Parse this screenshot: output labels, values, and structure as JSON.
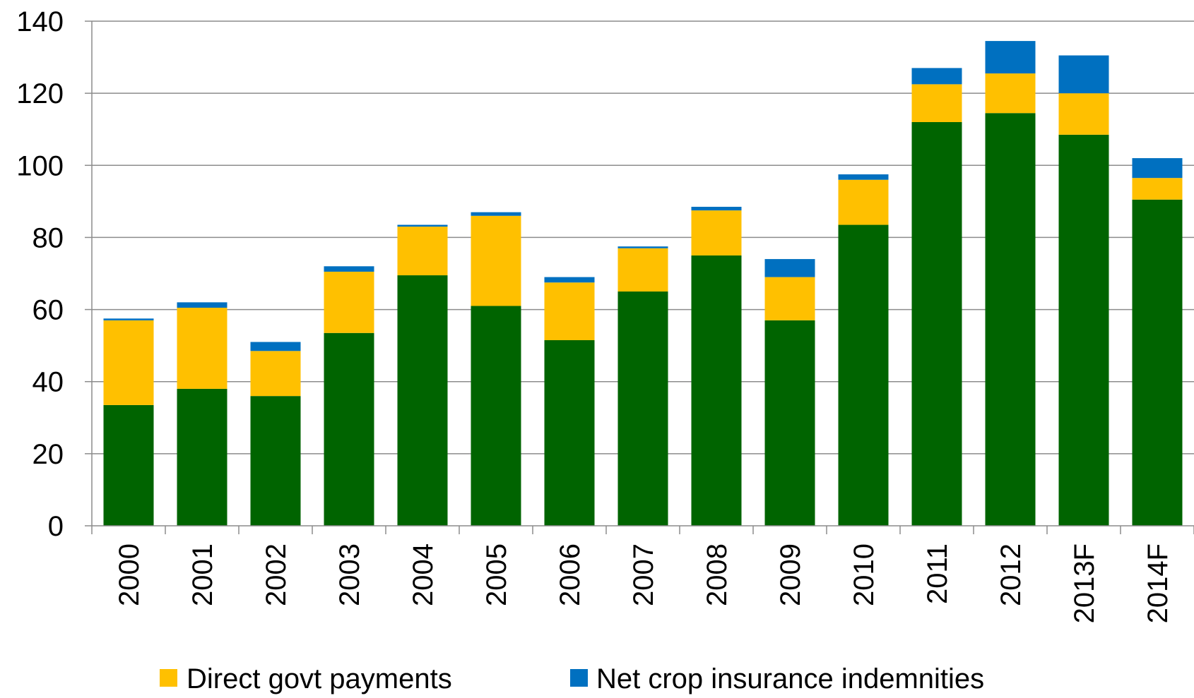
{
  "chart_data": {
    "type": "bar",
    "stacked": true,
    "title": "",
    "xlabel": "",
    "ylabel": "",
    "ylim": [
      0,
      140
    ],
    "yticks": [
      0,
      20,
      40,
      60,
      80,
      100,
      120,
      140
    ],
    "grid": true,
    "legend_position": "bottom",
    "categories": [
      "2000",
      "2001",
      "2002",
      "2003",
      "2004",
      "2005",
      "2006",
      "2007",
      "2008",
      "2009",
      "2010",
      "2011",
      "2012",
      "2013F",
      "2014F"
    ],
    "series": [
      {
        "color": "#006400",
        "values": [
          33.5,
          38,
          36,
          53.5,
          69.5,
          61,
          51.5,
          65,
          75,
          57,
          83.5,
          112,
          114.5,
          108.5,
          90.5
        ]
      },
      {
        "name": "Direct govt payments",
        "color": "#FFC000",
        "values": [
          23.5,
          22.5,
          12.5,
          17,
          13.5,
          25,
          16,
          12,
          12.5,
          12,
          12.5,
          10.5,
          11,
          11.5,
          6
        ]
      },
      {
        "name": "Net crop insurance indemnities",
        "color": "#0070C0",
        "values": [
          0.5,
          1.5,
          2.5,
          1.5,
          0.5,
          1,
          1.5,
          0.5,
          1,
          5,
          1.5,
          4.5,
          9,
          10.5,
          5.5
        ]
      }
    ]
  }
}
